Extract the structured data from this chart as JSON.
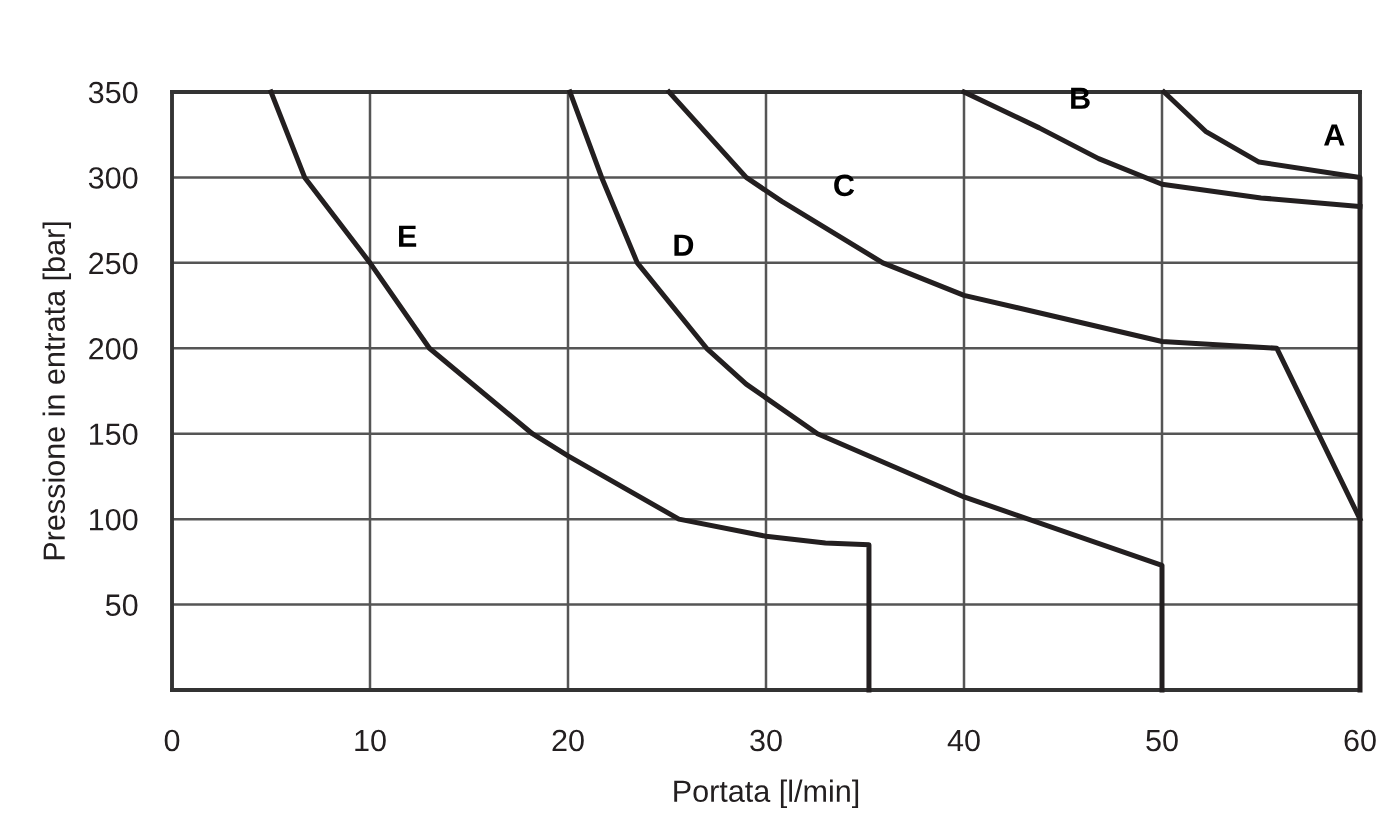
{
  "chart_data": {
    "type": "line",
    "xlabel": "Portata [l/min]",
    "ylabel": "Pressione in entrata [bar]",
    "xlim": [
      0,
      60
    ],
    "ylim": [
      0,
      350
    ],
    "xticks": [
      0,
      10,
      20,
      30,
      40,
      50,
      60
    ],
    "yticks": [
      50,
      100,
      150,
      200,
      250,
      300,
      350
    ],
    "grid": true,
    "legend": false,
    "marker": "none",
    "line_style": "solid",
    "series": [
      {
        "name": "A",
        "color": "#231f20",
        "x": [
          50.1,
          52.2,
          54.9,
          60,
          60
        ],
        "values": [
          350,
          327,
          309,
          300,
          0
        ]
      },
      {
        "name": "B",
        "color": "#231f20",
        "x": [
          40,
          43.8,
          46.8,
          50,
          55,
          60
        ],
        "values": [
          350,
          329,
          311,
          296,
          288,
          283
        ]
      },
      {
        "name": "C",
        "color": "#231f20",
        "x": [
          25.1,
          29,
          30.8,
          35.9,
          40,
          50,
          55.8,
          60
        ],
        "values": [
          350,
          300,
          286,
          250,
          231,
          204,
          200,
          100
        ]
      },
      {
        "name": "D",
        "color": "#231f20",
        "x": [
          20.1,
          21.7,
          23.5,
          27,
          29,
          32.6,
          40,
          50,
          50
        ],
        "values": [
          350,
          300,
          250,
          200,
          179,
          150,
          113,
          73,
          0
        ]
      },
      {
        "name": "E",
        "color": "#231f20",
        "x": [
          5.0,
          6.7,
          10,
          13,
          18.2,
          20,
          25.6,
          30,
          33,
          35.2,
          35.2
        ],
        "values": [
          350,
          300,
          250,
          200,
          150,
          137,
          100,
          90,
          86,
          85,
          0
        ]
      }
    ]
  }
}
